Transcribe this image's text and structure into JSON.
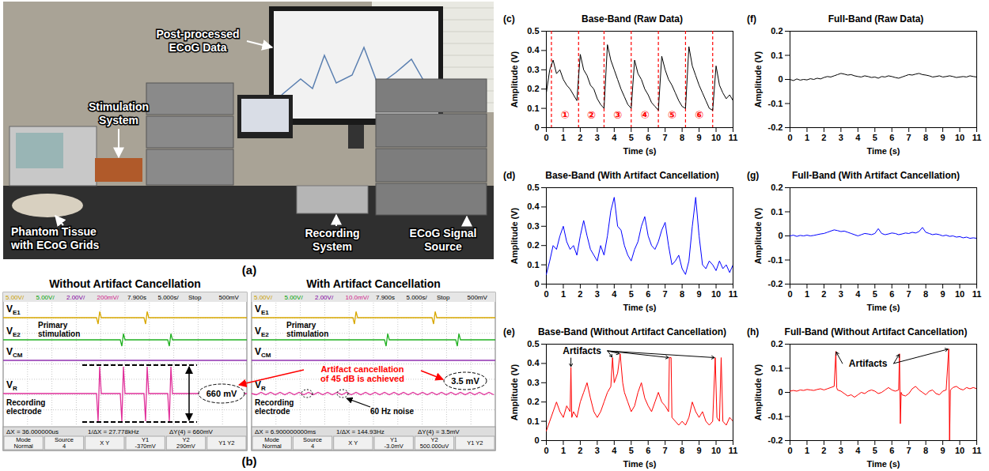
{
  "photo": {
    "label": "(a)",
    "callouts": {
      "monitor": "Post-processed ECoG Data",
      "stimulation": "Stimulation System",
      "phantom": "Phantom Tissue with ECoG Grids",
      "recording": "Recording System",
      "source": "ECoG Signal Source"
    }
  },
  "oscilloscope": {
    "label": "(b)",
    "comparison": "Artifact cancellation of 45 dB is achieved",
    "screens": [
      {
        "title": "Without Artifact Cancellation",
        "header": [
          "5.00V/",
          "5.00V/",
          "2.00V/",
          "200mV/",
          "7.900s",
          "5.000s/",
          "Stop",
          "500mV"
        ],
        "traces": [
          {
            "symbol": "V",
            "subscript": "E1"
          },
          {
            "symbol": "V",
            "subscript": "E2"
          },
          {
            "symbol": "V",
            "subscript": "CM"
          },
          {
            "symbol": "V",
            "subscript": "R"
          }
        ],
        "stimulation_note": "Primary stimulation",
        "recording_note": "Recording electrode",
        "measurement": "660 mV",
        "readouts": [
          "ΔX = 36.000000us",
          "1/ΔX = 27.778kHz",
          "ΔY(4) = 660mV"
        ],
        "softkeys": [
          [
            "Mode",
            "Normal"
          ],
          [
            "Source",
            "4"
          ],
          [
            "X Y"
          ],
          [
            "Y1",
            "-370mV"
          ],
          [
            "Y2",
            "290mV"
          ],
          [
            "Y1 Y2"
          ]
        ]
      },
      {
        "title": "With Artifact Cancellation",
        "header": [
          "5.00V/",
          "5.00V/",
          "2.00V/",
          "10.0mV/",
          "7.900s",
          "5.000s/",
          "Stop",
          "500mV"
        ],
        "traces": [
          {
            "symbol": "V",
            "subscript": "E1"
          },
          {
            "symbol": "V",
            "subscript": "E2"
          },
          {
            "symbol": "V",
            "subscript": "CM"
          },
          {
            "symbol": "V",
            "subscript": "R"
          }
        ],
        "stimulation_note": "Primary stimulation",
        "recording_note": "Recording electrode",
        "measurement": "3.5 mV",
        "noise_note": "60 Hz noise",
        "readouts": [
          "ΔX = 6.900000000ms",
          "1/ΔX = 144.93Hz",
          "ΔY(4) = 3.5mV"
        ],
        "softkeys": [
          [
            "Mode",
            "Normal"
          ],
          [
            "Source",
            "4"
          ],
          [
            "X Y"
          ],
          [
            "Y1",
            "-3.0mV"
          ],
          [
            "Y2",
            "500.000uV"
          ],
          [
            "Y1 Y2"
          ]
        ]
      }
    ]
  },
  "chart_data": [
    {
      "type": "line",
      "label": "(c)",
      "title": "Base-Band (Raw Data)",
      "x_label": "Time (s)",
      "y_label": "Amplitude (V)",
      "xlim": [
        0,
        11
      ],
      "ylim": [
        0,
        0.5
      ],
      "xticks": [
        0,
        1,
        2,
        3,
        4,
        5,
        6,
        7,
        8,
        9,
        10,
        11
      ],
      "yticks": [
        0,
        0.1,
        0.2,
        0.3,
        0.4,
        0.5
      ],
      "grid": false,
      "color": "#000000",
      "x": [
        0,
        0.2,
        0.4,
        0.6,
        0.8,
        1,
        1.2,
        1.4,
        1.6,
        1.8,
        2,
        2.2,
        2.4,
        2.6,
        2.8,
        3,
        3.2,
        3.4,
        3.6,
        3.8,
        4,
        4.2,
        4.4,
        4.6,
        4.8,
        5,
        5.2,
        5.4,
        5.6,
        5.8,
        6,
        6.2,
        6.4,
        6.6,
        6.8,
        7,
        7.2,
        7.4,
        7.6,
        7.8,
        8,
        8.2,
        8.4,
        8.6,
        8.8,
        9,
        9.2,
        9.4,
        9.6,
        9.8,
        10,
        10.2,
        10.4,
        10.6,
        10.8,
        11
      ],
      "values": [
        0.18,
        0.3,
        0.35,
        0.28,
        0.3,
        0.25,
        0.22,
        0.2,
        0.17,
        0.14,
        0.38,
        0.3,
        0.27,
        0.22,
        0.2,
        0.15,
        0.12,
        0.1,
        0.43,
        0.35,
        0.3,
        0.25,
        0.2,
        0.16,
        0.12,
        0.1,
        0.35,
        0.28,
        0.25,
        0.2,
        0.17,
        0.13,
        0.11,
        0.09,
        0.37,
        0.3,
        0.25,
        0.22,
        0.18,
        0.14,
        0.11,
        0.1,
        0.42,
        0.32,
        0.27,
        0.22,
        0.18,
        0.14,
        0.1,
        0.09,
        0.32,
        0.22,
        0.18,
        0.15,
        0.17,
        0.14
      ],
      "dividers": [
        0.3,
        1.9,
        3.4,
        5.0,
        6.6,
        8.2,
        9.8
      ],
      "segment_labels": [
        "①",
        "②",
        "③",
        "④",
        "⑤",
        "⑥"
      ]
    },
    {
      "type": "line",
      "label": "(d)",
      "title": "Base-Band (With Artifact Cancellation)",
      "x_label": "Time (s)",
      "y_label": "Amplitude (V)",
      "xlim": [
        0,
        11
      ],
      "ylim": [
        0,
        0.5
      ],
      "xticks": [
        0,
        1,
        2,
        3,
        4,
        5,
        6,
        7,
        8,
        9,
        10,
        11
      ],
      "yticks": [
        0,
        0.1,
        0.2,
        0.3,
        0.4,
        0.5
      ],
      "grid": false,
      "color": "#0000ff",
      "x": [
        0,
        0.2,
        0.4,
        0.6,
        0.8,
        1,
        1.2,
        1.4,
        1.6,
        1.8,
        2,
        2.2,
        2.4,
        2.6,
        2.8,
        3,
        3.2,
        3.4,
        3.6,
        3.8,
        4,
        4.2,
        4.4,
        4.6,
        4.8,
        5,
        5.2,
        5.4,
        5.6,
        5.8,
        6,
        6.2,
        6.4,
        6.6,
        6.8,
        7,
        7.2,
        7.4,
        7.6,
        7.8,
        8,
        8.2,
        8.4,
        8.6,
        8.8,
        9,
        9.2,
        9.4,
        9.6,
        9.8,
        10,
        10.2,
        10.4,
        10.6,
        10.8,
        11
      ],
      "values": [
        0.05,
        0.12,
        0.2,
        0.18,
        0.25,
        0.3,
        0.22,
        0.18,
        0.2,
        0.15,
        0.25,
        0.33,
        0.25,
        0.18,
        0.15,
        0.12,
        0.2,
        0.15,
        0.25,
        0.38,
        0.45,
        0.3,
        0.28,
        0.2,
        0.15,
        0.12,
        0.18,
        0.22,
        0.3,
        0.35,
        0.25,
        0.2,
        0.18,
        0.22,
        0.28,
        0.32,
        0.2,
        0.1,
        0.12,
        0.15,
        0.08,
        0.05,
        0.12,
        0.3,
        0.45,
        0.25,
        0.1,
        0.08,
        0.12,
        0.1,
        0.07,
        0.12,
        0.08,
        0.1,
        0.06,
        0.1
      ]
    },
    {
      "type": "line",
      "label": "(e)",
      "title": "Base-Band (Without Artifact Cancellation)",
      "x_label": "Time (s)",
      "y_label": "Amplitude (V)",
      "xlim": [
        0,
        11
      ],
      "ylim": [
        0,
        0.5
      ],
      "xticks": [
        0,
        1,
        2,
        3,
        4,
        5,
        6,
        7,
        8,
        9,
        10,
        11
      ],
      "yticks": [
        0,
        0.1,
        0.2,
        0.3,
        0.4,
        0.5
      ],
      "grid": false,
      "color": "#ff0000",
      "x": [
        0,
        0.2,
        0.4,
        0.6,
        0.8,
        1,
        1.2,
        1.4,
        1.45,
        1.5,
        1.6,
        1.8,
        2,
        2.2,
        2.4,
        2.6,
        2.8,
        3,
        3.2,
        3.4,
        3.6,
        3.8,
        3.9,
        4,
        4.2,
        4.35,
        4.5,
        4.6,
        4.8,
        5,
        5.2,
        5.4,
        5.6,
        5.8,
        6,
        6.2,
        6.4,
        6.6,
        6.8,
        7,
        7.2,
        7.25,
        7.35,
        7.4,
        7.6,
        7.8,
        8,
        8.2,
        8.4,
        8.6,
        8.8,
        9,
        9.2,
        9.4,
        9.6,
        9.8,
        9.95,
        10.05,
        10.2,
        10.3,
        10.4,
        10.6,
        10.8,
        11
      ],
      "values": [
        0.05,
        0.1,
        0.15,
        0.2,
        0.15,
        0.12,
        0.18,
        0.15,
        0.38,
        0.12,
        0.15,
        0.12,
        0.2,
        0.25,
        0.3,
        0.22,
        0.15,
        0.12,
        0.15,
        0.2,
        0.25,
        0.28,
        0.43,
        0.3,
        0.35,
        0.45,
        0.3,
        0.25,
        0.2,
        0.15,
        0.18,
        0.25,
        0.3,
        0.22,
        0.18,
        0.15,
        0.2,
        0.25,
        0.2,
        0.18,
        0.15,
        0.43,
        0.43,
        0.12,
        0.1,
        0.08,
        0.1,
        0.08,
        0.12,
        0.2,
        0.15,
        0.12,
        0.15,
        0.1,
        0.08,
        0.1,
        0.43,
        0.12,
        0.1,
        0.43,
        0.1,
        0.08,
        0.12,
        0.1
      ],
      "annotation": {
        "text": "Artifacts",
        "x": 2.1,
        "y": 0.465,
        "targets": [
          1.45,
          3.9,
          4.35,
          7.25,
          9.95
        ]
      }
    },
    {
      "type": "line",
      "label": "(f)",
      "title": "Full-Band (Raw Data)",
      "x_label": "Time (s)",
      "y_label": "Amplitude (V)",
      "xlim": [
        0,
        11
      ],
      "ylim": [
        -0.2,
        0.2
      ],
      "xticks": [
        0,
        1,
        2,
        3,
        4,
        5,
        6,
        7,
        8,
        9,
        10,
        11
      ],
      "yticks": [
        -0.2,
        -0.1,
        0,
        0.1,
        0.2
      ],
      "grid": false,
      "color": "#000000",
      "x": [
        0,
        0.2,
        0.4,
        0.6,
        0.8,
        1,
        1.2,
        1.4,
        1.6,
        1.8,
        2,
        2.2,
        2.4,
        2.6,
        2.8,
        3,
        3.2,
        3.4,
        3.6,
        3.8,
        4,
        4.2,
        4.4,
        4.6,
        4.8,
        5,
        5.2,
        5.4,
        5.6,
        5.8,
        6,
        6.2,
        6.4,
        6.6,
        6.8,
        7,
        7.2,
        7.4,
        7.6,
        7.8,
        8,
        8.2,
        8.4,
        8.6,
        8.8,
        9,
        9.2,
        9.4,
        9.6,
        9.8,
        10,
        10.2,
        10.4,
        10.6,
        10.8,
        11
      ],
      "values": [
        0,
        -0.005,
        0.002,
        -0.003,
        0,
        -0.002,
        0.003,
        0,
        0.005,
        0.002,
        0.008,
        0.012,
        0.01,
        0.015,
        0.02,
        0.025,
        0.022,
        0.018,
        0.02,
        0.015,
        0.012,
        0.01,
        0.015,
        0.012,
        0.008,
        0.01,
        0.005,
        0.012,
        0.01,
        0.015,
        0.012,
        0.008,
        0.005,
        0.01,
        0.015,
        0.02,
        0.018,
        0.022,
        0.025,
        0.02,
        0.018,
        0.015,
        0.01,
        0.012,
        0.015,
        0.01,
        0.012,
        0.015,
        0.012,
        0.008,
        0.01,
        0.012,
        0.01,
        0.015,
        0.012,
        0.01
      ]
    },
    {
      "type": "line",
      "label": "(g)",
      "title": "Full-Band (With Artifact Cancellation)",
      "x_label": "Time (s)",
      "y_label": "Amplitude (V)",
      "xlim": [
        0,
        11
      ],
      "ylim": [
        -0.2,
        0.2
      ],
      "xticks": [
        0,
        1,
        2,
        3,
        4,
        5,
        6,
        7,
        8,
        9,
        10,
        11
      ],
      "yticks": [
        -0.2,
        -0.1,
        0,
        0.1,
        0.2
      ],
      "grid": false,
      "color": "#0000ff",
      "x": [
        0,
        0.2,
        0.4,
        0.6,
        0.8,
        1,
        1.2,
        1.4,
        1.6,
        1.8,
        2,
        2.2,
        2.4,
        2.6,
        2.8,
        3,
        3.2,
        3.4,
        3.6,
        3.8,
        4,
        4.2,
        4.4,
        4.6,
        4.8,
        5,
        5.2,
        5.4,
        5.6,
        5.8,
        6,
        6.2,
        6.4,
        6.6,
        6.8,
        7,
        7.2,
        7.4,
        7.6,
        7.8,
        8,
        8.2,
        8.4,
        8.6,
        8.8,
        9,
        9.2,
        9.4,
        9.6,
        9.8,
        10,
        10.2,
        10.4,
        10.6,
        10.8,
        11
      ],
      "values": [
        0,
        0.003,
        -0.002,
        0.002,
        0,
        0.003,
        0,
        0.002,
        0.005,
        0.008,
        0.01,
        0.015,
        0.02,
        0.025,
        0.022,
        0.018,
        0.02,
        0.015,
        0.01,
        0.005,
        0,
        0.005,
        0.01,
        0.008,
        0.005,
        0.01,
        0.03,
        0.01,
        0.005,
        0.008,
        0.012,
        0.01,
        0.005,
        0.008,
        0.012,
        0.01,
        0.015,
        0.012,
        0.018,
        0.035,
        0.015,
        0.01,
        0.005,
        0.008,
        0.005,
        0,
        0.003,
        -0.002,
        0,
        -0.005,
        -0.003,
        -0.008,
        -0.005,
        -0.01,
        -0.008,
        -0.01
      ]
    },
    {
      "type": "line",
      "label": "(h)",
      "title": "Full-Band (Without Artifact Cancellation)",
      "x_label": "Time (s)",
      "y_label": "Amplitude (V)",
      "xlim": [
        0,
        11
      ],
      "ylim": [
        -0.2,
        0.2
      ],
      "xticks": [
        0,
        1,
        2,
        3,
        4,
        5,
        6,
        7,
        8,
        9,
        10,
        11
      ],
      "yticks": [
        -0.2,
        -0.1,
        0,
        0.1,
        0.2
      ],
      "grid": false,
      "color": "#ff0000",
      "x": [
        0,
        0.2,
        0.4,
        0.6,
        0.8,
        1,
        1.2,
        1.4,
        1.6,
        1.8,
        2,
        2.2,
        2.4,
        2.6,
        2.7,
        2.75,
        2.8,
        3,
        3.2,
        3.4,
        3.6,
        3.8,
        4,
        4.2,
        4.4,
        4.6,
        4.8,
        5,
        5.2,
        5.4,
        5.6,
        5.8,
        6,
        6.2,
        6.4,
        6.45,
        6.5,
        6.55,
        6.6,
        6.8,
        7,
        7.2,
        7.4,
        7.6,
        7.8,
        8,
        8.2,
        8.4,
        8.6,
        8.8,
        9,
        9.2,
        9.35,
        9.4,
        9.45,
        9.6,
        9.8,
        10,
        10.2,
        10.4,
        10.6,
        10.8,
        11
      ],
      "values": [
        0.005,
        0.008,
        0.005,
        0.01,
        0.008,
        0.012,
        0.01,
        0.008,
        0.012,
        0.015,
        0.01,
        0.015,
        0.02,
        0.025,
        0.17,
        0.02,
        0.01,
        0.005,
        -0.005,
        -0.015,
        -0.01,
        -0.02,
        -0.01,
        0,
        -0.005,
        0.005,
        0.01,
        0.005,
        -0.005,
        0,
        0.01,
        0.02,
        0.01,
        0.005,
        0.01,
        0.16,
        -0.13,
        0,
        -0.01,
        -0.015,
        -0.005,
        0.015,
        0.025,
        0.01,
        0,
        -0.01,
        0.005,
        0.01,
        -0.005,
        -0.01,
        0.005,
        0.01,
        0.18,
        -0.2,
        0.01,
        0.02,
        0.025,
        0.015,
        0.01,
        0.02,
        0.015,
        0.02,
        0.015
      ],
      "annotation": {
        "text": "Artifacts",
        "x": 4.6,
        "y": 0.12,
        "targets": [
          2.7,
          6.45,
          9.35
        ]
      }
    }
  ]
}
